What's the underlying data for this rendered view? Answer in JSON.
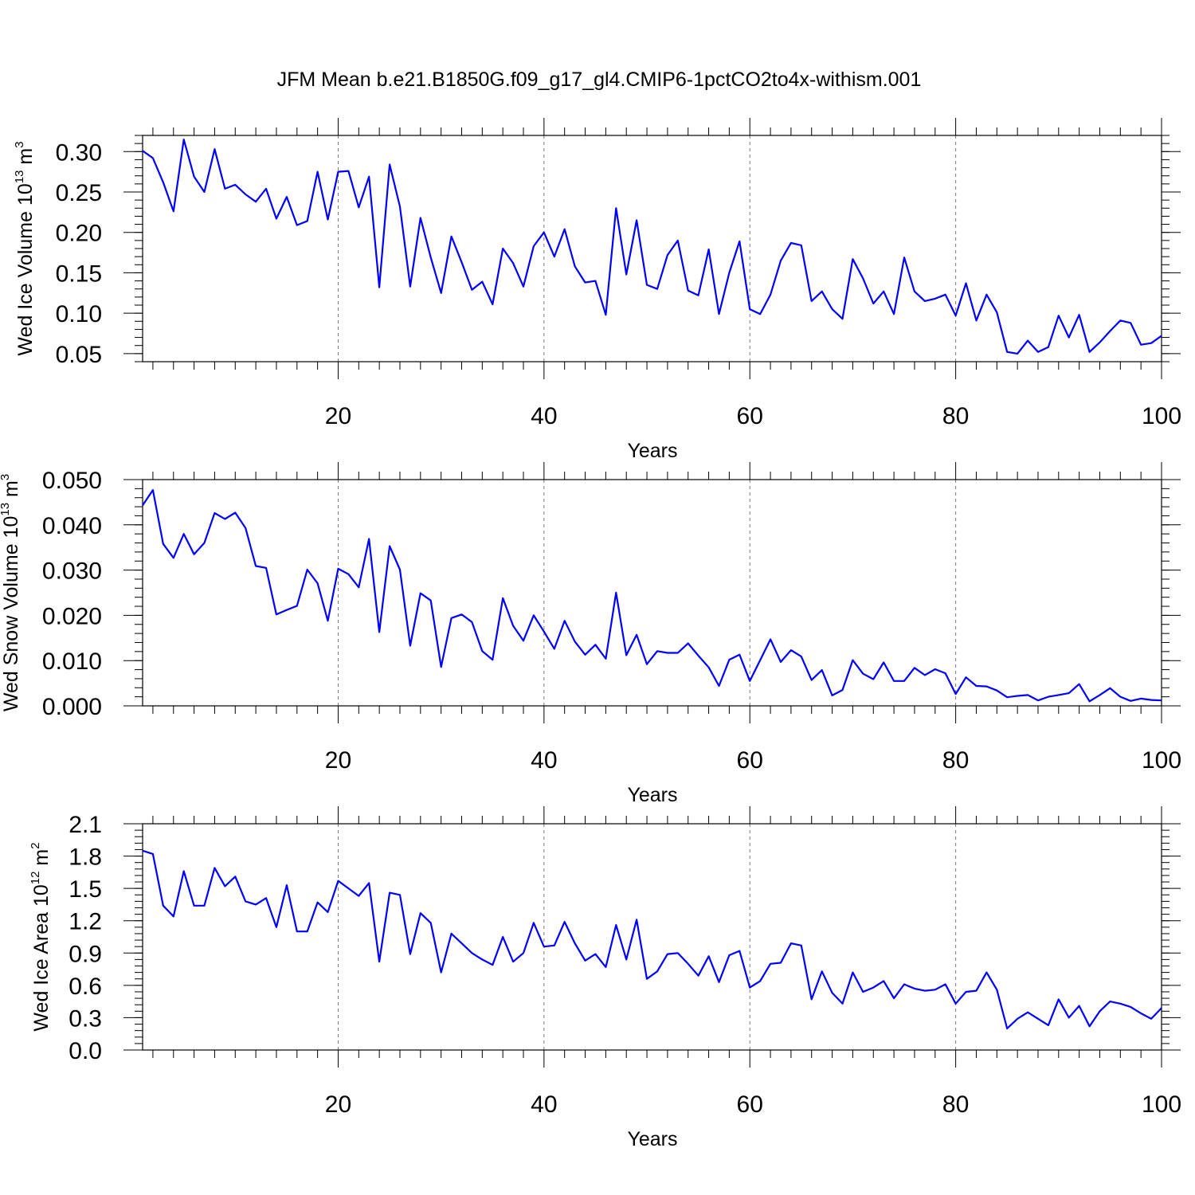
{
  "title": "JFM Mean b.e21.B1850G.f09_g17_gl4.CMIP6-1pctCO2to4x-withism.001",
  "colors": {
    "series": "#0000ff",
    "axis": "#000000",
    "grid": "#777777"
  },
  "chart_data": [
    {
      "type": "line",
      "ylabel": {
        "main": "Wed Ice Volume 10",
        "sup1": "13",
        "mid": " m",
        "sup2": "3"
      },
      "xlabel": "Years",
      "xlim": [
        1,
        100
      ],
      "ylim": [
        0.04,
        0.32
      ],
      "xticks": [
        20,
        40,
        60,
        80,
        100
      ],
      "yticks": [
        "0.05",
        "0.10",
        "0.15",
        "0.20",
        "0.25",
        "0.30"
      ],
      "grid_x": [
        20,
        40,
        60,
        80
      ],
      "x_start": 1,
      "values": [
        0.301,
        0.292,
        0.262,
        0.226,
        0.315,
        0.269,
        0.25,
        0.303,
        0.254,
        0.259,
        0.247,
        0.238,
        0.254,
        0.217,
        0.244,
        0.209,
        0.214,
        0.275,
        0.216,
        0.275,
        0.276,
        0.231,
        0.269,
        0.132,
        0.284,
        0.232,
        0.133,
        0.218,
        0.169,
        0.125,
        0.195,
        0.163,
        0.129,
        0.139,
        0.111,
        0.18,
        0.162,
        0.133,
        0.183,
        0.2,
        0.17,
        0.204,
        0.158,
        0.138,
        0.14,
        0.098,
        0.23,
        0.148,
        0.215,
        0.135,
        0.13,
        0.172,
        0.19,
        0.128,
        0.122,
        0.179,
        0.099,
        0.15,
        0.189,
        0.105,
        0.099,
        0.123,
        0.165,
        0.187,
        0.184,
        0.115,
        0.127,
        0.105,
        0.093,
        0.167,
        0.143,
        0.112,
        0.127,
        0.099,
        0.169,
        0.127,
        0.115,
        0.118,
        0.123,
        0.097,
        0.137,
        0.091,
        0.123,
        0.101,
        0.052,
        0.05,
        0.066,
        0.052,
        0.058,
        0.097,
        0.07,
        0.098,
        0.052,
        0.064,
        0.078,
        0.091,
        0.088,
        0.061,
        0.063,
        0.072
      ]
    },
    {
      "type": "line",
      "ylabel": {
        "main": "Wed Snow Volume 10",
        "sup1": "13",
        "mid": " m",
        "sup2": "3"
      },
      "xlabel": "Years",
      "xlim": [
        1,
        100
      ],
      "ylim": [
        0.0,
        0.05
      ],
      "xticks": [
        20,
        40,
        60,
        80,
        100
      ],
      "yticks": [
        "0.000",
        "0.010",
        "0.020",
        "0.030",
        "0.040",
        "0.050"
      ],
      "grid_x": [
        20,
        40,
        60,
        80
      ],
      "x_start": 1,
      "values": [
        0.0443,
        0.0477,
        0.0358,
        0.0327,
        0.038,
        0.0335,
        0.036,
        0.0426,
        0.0413,
        0.0427,
        0.0393,
        0.0309,
        0.0305,
        0.0202,
        0.0212,
        0.0221,
        0.0301,
        0.0271,
        0.0188,
        0.0303,
        0.0291,
        0.0262,
        0.0369,
        0.0163,
        0.0353,
        0.0301,
        0.0133,
        0.0249,
        0.0233,
        0.0086,
        0.0194,
        0.0202,
        0.0185,
        0.0121,
        0.0102,
        0.0238,
        0.0177,
        0.0144,
        0.02,
        0.0164,
        0.0126,
        0.0188,
        0.0142,
        0.0113,
        0.0135,
        0.0104,
        0.025,
        0.0112,
        0.0157,
        0.0092,
        0.0121,
        0.0117,
        0.0117,
        0.0138,
        0.0111,
        0.0085,
        0.0044,
        0.0102,
        0.0113,
        0.0055,
        0.0101,
        0.0147,
        0.0097,
        0.0123,
        0.0109,
        0.0057,
        0.0079,
        0.0023,
        0.0035,
        0.0101,
        0.0071,
        0.0059,
        0.0096,
        0.0055,
        0.0055,
        0.0084,
        0.0068,
        0.0081,
        0.0072,
        0.0026,
        0.0063,
        0.0044,
        0.0043,
        0.0034,
        0.0019,
        0.0022,
        0.0024,
        0.0012,
        0.002,
        0.0024,
        0.0028,
        0.0048,
        0.001,
        0.0024,
        0.0039,
        0.002,
        0.0011,
        0.0016,
        0.0013,
        0.0012
      ]
    },
    {
      "type": "line",
      "ylabel": {
        "main": "Wed Ice Area 10",
        "sup1": "12",
        "mid": " m",
        "sup2": "2"
      },
      "xlabel": "Years",
      "xlim": [
        1,
        100
      ],
      "ylim": [
        0.0,
        2.1
      ],
      "xticks": [
        20,
        40,
        60,
        80,
        100
      ],
      "yticks": [
        "0.0",
        "0.3",
        "0.6",
        "0.9",
        "1.2",
        "1.5",
        "1.8",
        "2.1"
      ],
      "grid_x": [
        20,
        40,
        60,
        80
      ],
      "x_start": 1,
      "values": [
        1.85,
        1.82,
        1.34,
        1.24,
        1.66,
        1.34,
        1.34,
        1.69,
        1.52,
        1.61,
        1.38,
        1.35,
        1.41,
        1.14,
        1.53,
        1.1,
        1.1,
        1.37,
        1.28,
        1.57,
        1.5,
        1.43,
        1.55,
        0.82,
        1.46,
        1.44,
        0.89,
        1.27,
        1.18,
        0.72,
        1.08,
        0.99,
        0.9,
        0.84,
        0.79,
        1.05,
        0.82,
        0.9,
        1.18,
        0.96,
        0.97,
        1.19,
        0.99,
        0.83,
        0.89,
        0.77,
        1.16,
        0.84,
        1.21,
        0.66,
        0.73,
        0.89,
        0.9,
        0.8,
        0.69,
        0.87,
        0.63,
        0.88,
        0.92,
        0.58,
        0.64,
        0.8,
        0.81,
        0.99,
        0.97,
        0.47,
        0.73,
        0.53,
        0.43,
        0.72,
        0.54,
        0.58,
        0.64,
        0.48,
        0.61,
        0.57,
        0.55,
        0.56,
        0.61,
        0.43,
        0.54,
        0.55,
        0.72,
        0.56,
        0.2,
        0.29,
        0.35,
        0.29,
        0.23,
        0.47,
        0.3,
        0.41,
        0.22,
        0.36,
        0.45,
        0.43,
        0.4,
        0.34,
        0.29,
        0.39
      ]
    }
  ]
}
